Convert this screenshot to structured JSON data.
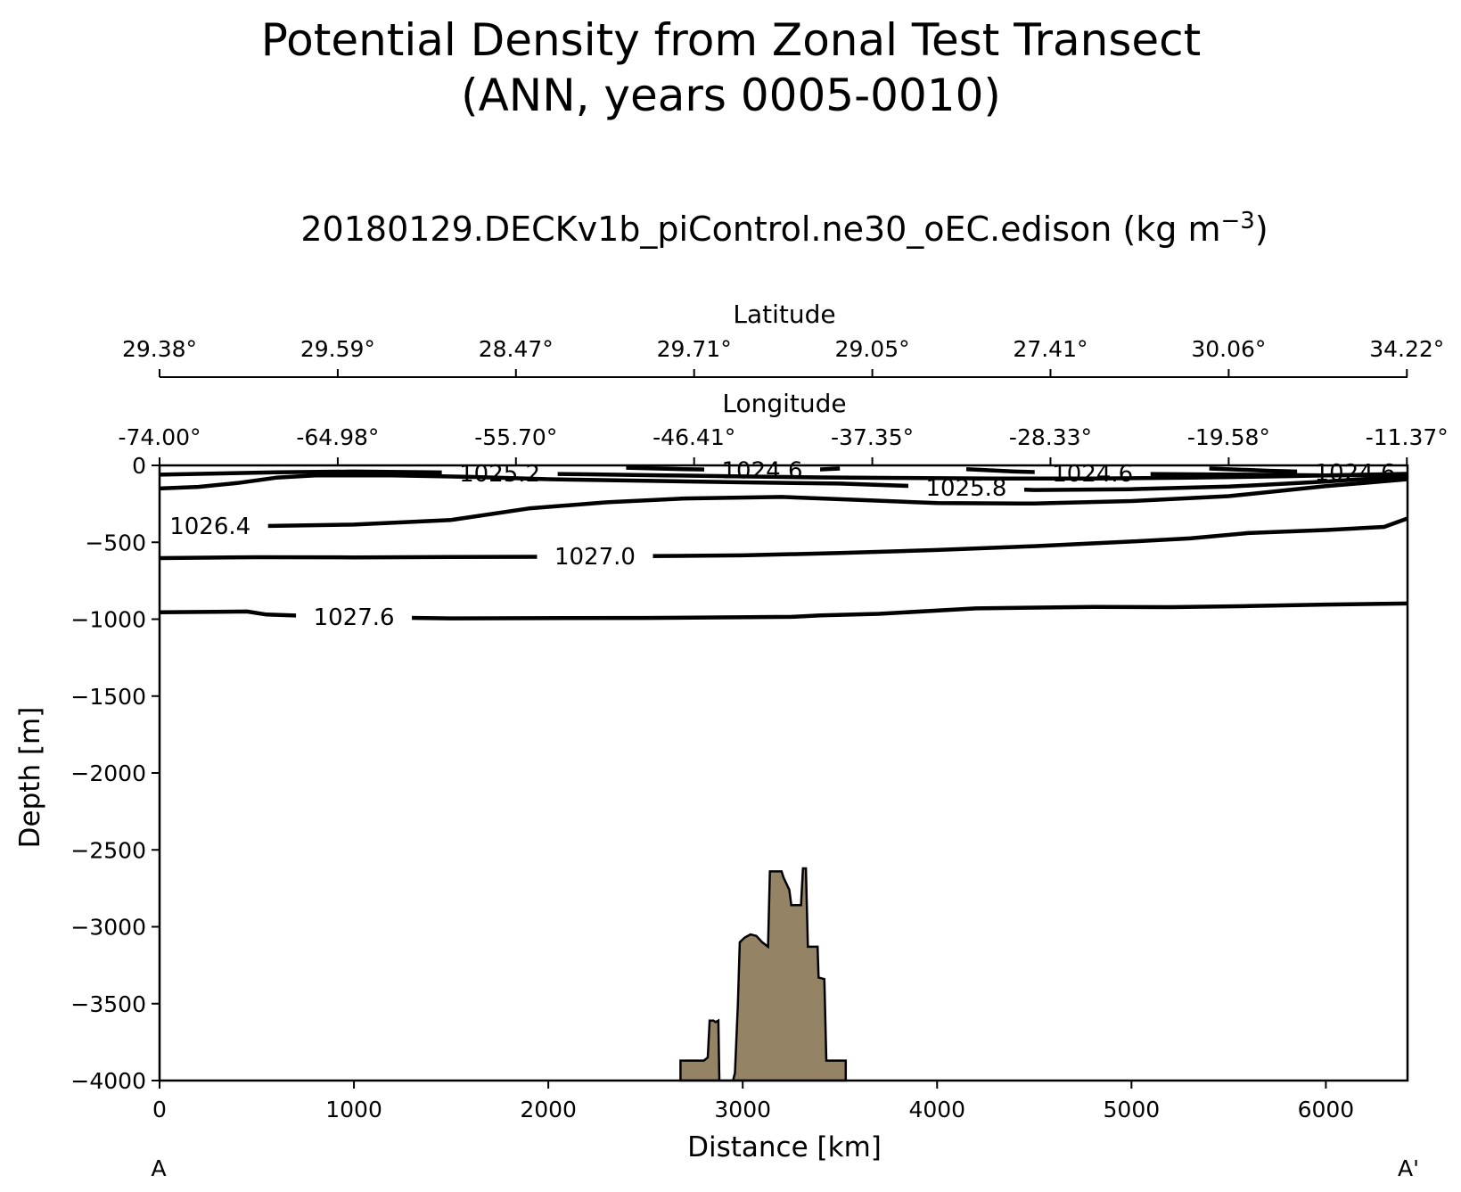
{
  "chart_data": {
    "type": "contour",
    "suptitle_line1": "Potential Density from Zonal Test Transect",
    "suptitle_line2": "(ANN, years 0005-0010)",
    "title": "20180129.DECKv1b_piControl.ne30_oEC.edison (kg m",
    "title_exponent": "−3",
    "title_close": ")",
    "xlabel": "Distance [km]",
    "ylabel": "Depth [m]",
    "xlim": [
      0,
      6420
    ],
    "ylim": [
      -4000,
      0
    ],
    "xticks": [
      0,
      1000,
      2000,
      3000,
      4000,
      5000,
      6000
    ],
    "yticks": [
      0,
      -500,
      -1000,
      -1500,
      -2000,
      -2500,
      -3000,
      -3500,
      -4000
    ],
    "ytick_labels": [
      "0",
      "−500",
      "−1000",
      "−1500",
      "−2000",
      "−2500",
      "−3000",
      "−3500",
      "−4000"
    ],
    "secondary_tick_x": [
      0,
      916.7,
      1833.3,
      2750,
      3666.7,
      4583.3,
      5500,
      6416.7
    ],
    "longitude_label": "Longitude",
    "longitude_ticks": [
      "-74.00°",
      "-64.98°",
      "-55.70°",
      "-46.41°",
      "-37.35°",
      "-28.33°",
      "-19.58°",
      "-11.37°"
    ],
    "latitude_label": "Latitude",
    "latitude_ticks": [
      "29.38°",
      "29.59°",
      "28.47°",
      "29.71°",
      "29.05°",
      "27.41°",
      "30.06°",
      "34.22°"
    ],
    "endpoint_start": "A",
    "endpoint_end": "A'",
    "bottom_color": "#948365",
    "contours": [
      {
        "level": "1027.6",
        "label_at": 1000,
        "points": [
          [
            0,
            -955
          ],
          [
            450,
            -950
          ],
          [
            550,
            -970
          ],
          [
            900,
            -985
          ],
          [
            1500,
            -995
          ],
          [
            2500,
            -992
          ],
          [
            3250,
            -985
          ],
          [
            3400,
            -975
          ],
          [
            3700,
            -965
          ],
          [
            4200,
            -930
          ],
          [
            4800,
            -920
          ],
          [
            5200,
            -922
          ],
          [
            5600,
            -915
          ],
          [
            6000,
            -905
          ],
          [
            6420,
            -898
          ]
        ]
      },
      {
        "level": "1027.0",
        "label_at": 2240,
        "points": [
          [
            0,
            -603
          ],
          [
            500,
            -597
          ],
          [
            1000,
            -598
          ],
          [
            1500,
            -596
          ],
          [
            2000,
            -594
          ],
          [
            2500,
            -590
          ],
          [
            3000,
            -585
          ],
          [
            3500,
            -570
          ],
          [
            4000,
            -550
          ],
          [
            4500,
            -525
          ],
          [
            5000,
            -495
          ],
          [
            5300,
            -475
          ],
          [
            5600,
            -440
          ],
          [
            6000,
            -420
          ],
          [
            6300,
            -400
          ],
          [
            6420,
            -345
          ]
        ]
      },
      {
        "level": "1026.4",
        "label_at": 260,
        "points": [
          [
            0,
            -395
          ],
          [
            500,
            -395
          ],
          [
            1000,
            -385
          ],
          [
            1500,
            -355
          ],
          [
            1900,
            -280
          ],
          [
            2300,
            -240
          ],
          [
            2700,
            -215
          ],
          [
            3200,
            -205
          ],
          [
            3600,
            -225
          ],
          [
            4000,
            -245
          ],
          [
            4500,
            -248
          ],
          [
            5000,
            -232
          ],
          [
            5500,
            -200
          ],
          [
            6000,
            -135
          ],
          [
            6420,
            -90
          ]
        ]
      },
      {
        "level": "1025.8",
        "label_at": 4150,
        "points": [
          [
            0,
            -150
          ],
          [
            200,
            -140
          ],
          [
            400,
            -115
          ],
          [
            600,
            -80
          ],
          [
            800,
            -65
          ],
          [
            1200,
            -65
          ],
          [
            1600,
            -75
          ],
          [
            2000,
            -90
          ],
          [
            2500,
            -100
          ],
          [
            3000,
            -110
          ],
          [
            3500,
            -118
          ],
          [
            4000,
            -140
          ],
          [
            4500,
            -160
          ],
          [
            5000,
            -155
          ],
          [
            5500,
            -138
          ],
          [
            6000,
            -105
          ],
          [
            6420,
            -70
          ]
        ]
      },
      {
        "level": "1025.2",
        "label_at": 1750,
        "points": [
          [
            0,
            -60
          ],
          [
            600,
            -45
          ],
          [
            1000,
            -40
          ],
          [
            1400,
            -45
          ],
          [
            1800,
            -52
          ],
          [
            2200,
            -58
          ],
          [
            2600,
            -65
          ],
          [
            3000,
            -72
          ],
          [
            3400,
            -78
          ],
          [
            3800,
            -82
          ],
          [
            4300,
            -85
          ],
          [
            4800,
            -85
          ],
          [
            5300,
            -80
          ],
          [
            5800,
            -70
          ],
          [
            6420,
            -55
          ]
        ]
      },
      {
        "level": "1024.6",
        "label_at": 4800,
        "points": [
          [
            4150,
            -25
          ],
          [
            4400,
            -40
          ],
          [
            4700,
            -50
          ],
          [
            5000,
            -55
          ],
          [
            5300,
            -58
          ],
          [
            5600,
            -60
          ],
          [
            6000,
            -65
          ],
          [
            6420,
            -60
          ]
        ]
      },
      {
        "level": "1024.6",
        "label_at": 3100,
        "points": [
          [
            2400,
            -15
          ],
          [
            2700,
            -25
          ],
          [
            3000,
            -30
          ],
          [
            3300,
            -32
          ],
          [
            3500,
            -20
          ]
        ]
      },
      {
        "level": "1024.6",
        "label_at": 6150,
        "points": [
          [
            5400,
            -20
          ],
          [
            5700,
            -35
          ],
          [
            6000,
            -45
          ],
          [
            6420,
            -50
          ]
        ]
      }
    ],
    "bathymetry": [
      [
        2680,
        -4000
      ],
      [
        2680,
        -3870
      ],
      [
        2800,
        -3870
      ],
      [
        2820,
        -3850
      ],
      [
        2830,
        -3610
      ],
      [
        2850,
        -3610
      ],
      [
        2860,
        -3620
      ],
      [
        2875,
        -3610
      ],
      [
        2880,
        -4000
      ],
      [
        2950,
        -4000
      ],
      [
        2960,
        -3950
      ],
      [
        2975,
        -3500
      ],
      [
        2985,
        -3100
      ],
      [
        3010,
        -3070
      ],
      [
        3040,
        -3050
      ],
      [
        3070,
        -3060
      ],
      [
        3100,
        -3100
      ],
      [
        3130,
        -3130
      ],
      [
        3140,
        -2640
      ],
      [
        3200,
        -2640
      ],
      [
        3210,
        -2680
      ],
      [
        3240,
        -2760
      ],
      [
        3250,
        -2860
      ],
      [
        3300,
        -2860
      ],
      [
        3310,
        -2620
      ],
      [
        3325,
        -2620
      ],
      [
        3335,
        -3130
      ],
      [
        3385,
        -3130
      ],
      [
        3390,
        -3330
      ],
      [
        3420,
        -3340
      ],
      [
        3430,
        -3870
      ],
      [
        3530,
        -3870
      ],
      [
        3530,
        -4000
      ]
    ]
  }
}
